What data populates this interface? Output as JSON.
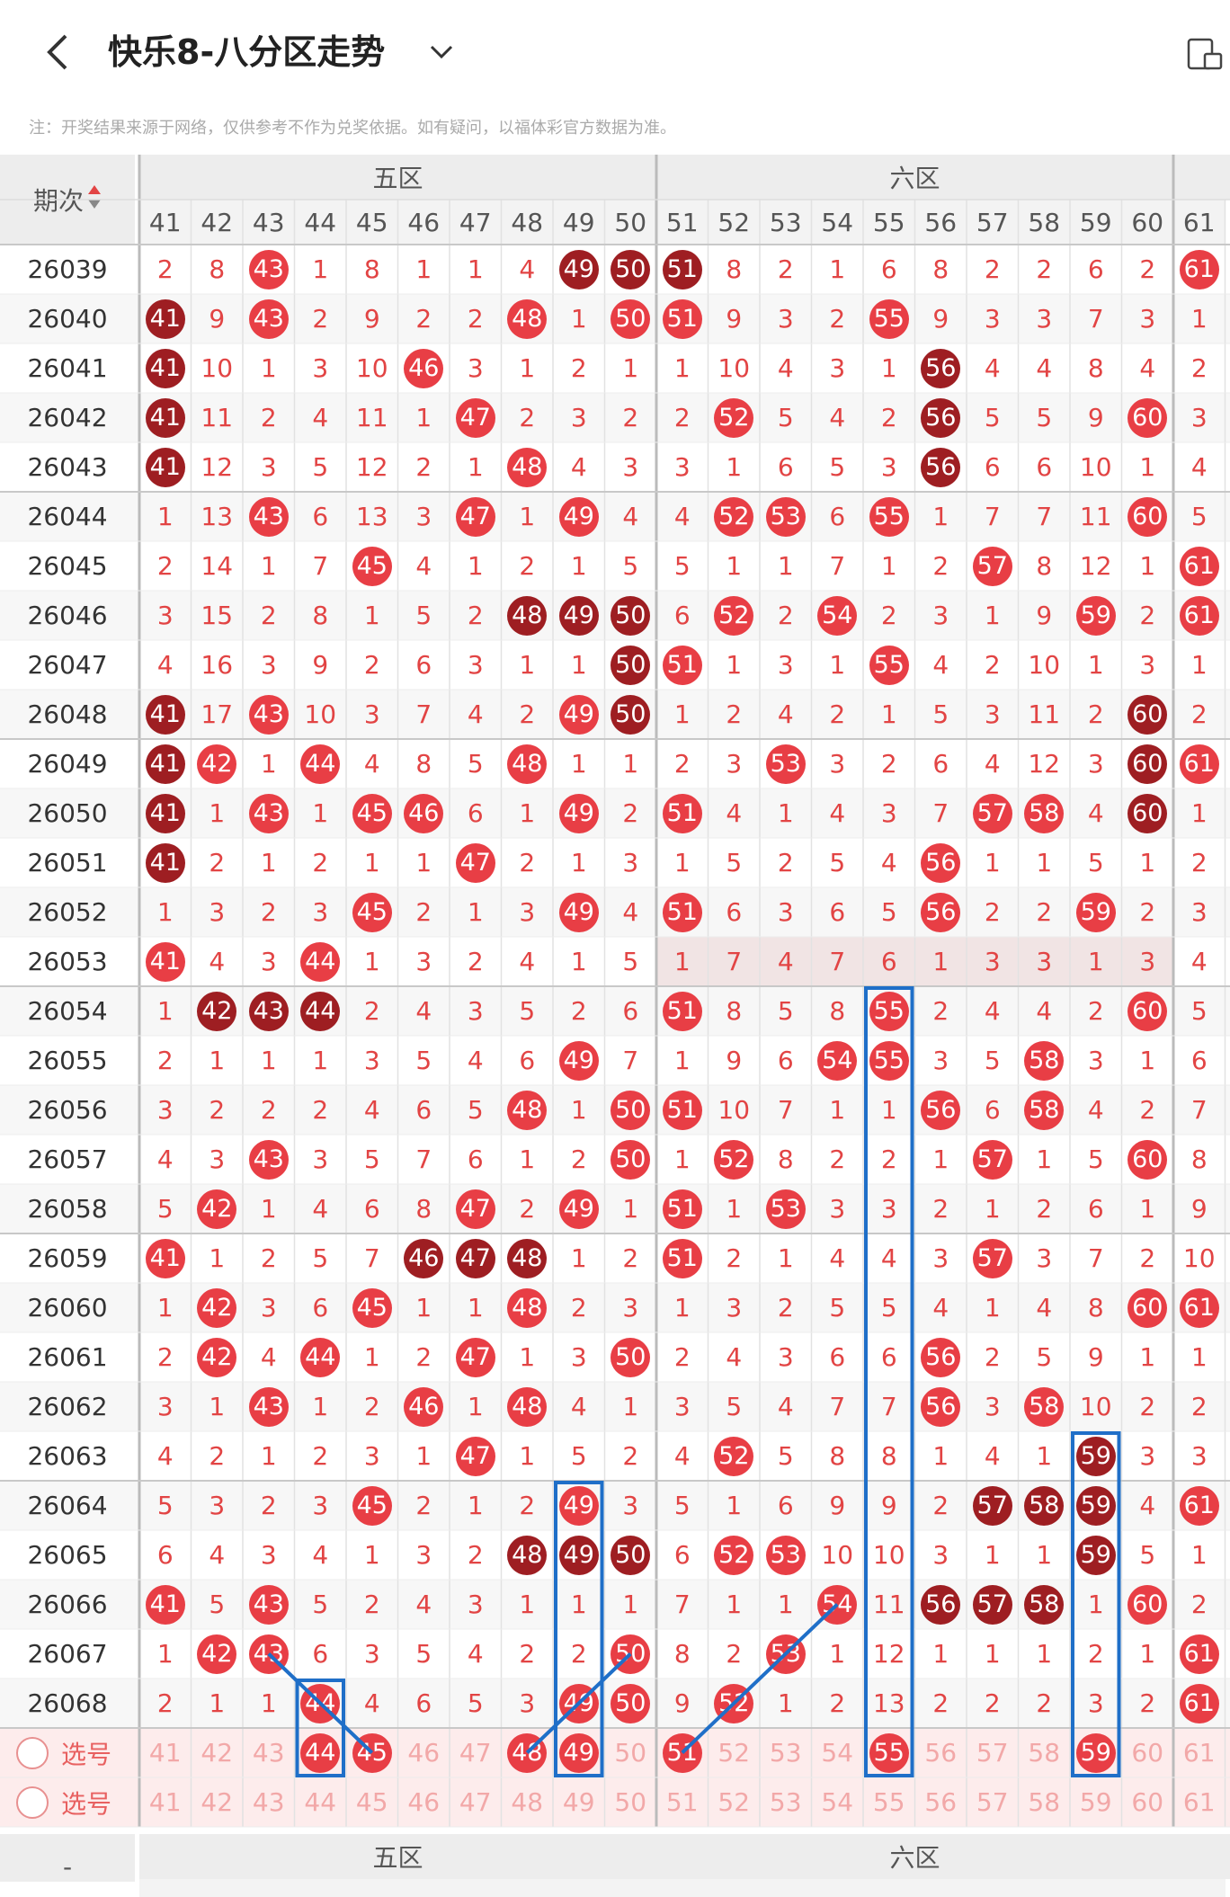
{
  "header": {
    "title": "快乐8-八分区走势",
    "back_icon": "chevron-left-icon",
    "dropdown_icon": "chevron-down-icon",
    "right_icon": "layout-toggle-icon"
  },
  "note": "注：开奖结果来源于网络，仅供参考不作为兑奖依据。如有疑问，以福体彩官方数据为准。",
  "table": {
    "period_header": "期次",
    "zones": [
      {
        "label": "五区",
        "cols": 10
      },
      {
        "label": "六区",
        "cols": 10
      }
    ],
    "bottom_zones": [
      "五区",
      "六区"
    ],
    "columns": [
      41,
      42,
      43,
      44,
      45,
      46,
      47,
      48,
      49,
      50,
      51,
      52,
      53,
      54,
      55,
      56,
      57,
      58,
      59,
      60,
      61
    ],
    "rows": [
      {
        "period": "26039",
        "cells": [
          "2",
          "8",
          "h43",
          "1",
          "8",
          "1",
          "1",
          "4",
          "d49",
          "d50",
          "d51",
          "8",
          "2",
          "1",
          "6",
          "8",
          "2",
          "2",
          "6",
          "2",
          "h61"
        ]
      },
      {
        "period": "26040",
        "cells": [
          "d41",
          "9",
          "h43",
          "2",
          "9",
          "2",
          "2",
          "h48",
          "1",
          "h50",
          "h51",
          "9",
          "3",
          "2",
          "h55",
          "9",
          "3",
          "3",
          "7",
          "3",
          "1"
        ]
      },
      {
        "period": "26041",
        "cells": [
          "d41",
          "10",
          "1",
          "3",
          "10",
          "h46",
          "3",
          "1",
          "2",
          "1",
          "1",
          "10",
          "4",
          "3",
          "1",
          "d56",
          "4",
          "4",
          "8",
          "4",
          "2"
        ]
      },
      {
        "period": "26042",
        "cells": [
          "d41",
          "11",
          "2",
          "4",
          "11",
          "1",
          "h47",
          "2",
          "3",
          "2",
          "2",
          "h52",
          "5",
          "4",
          "2",
          "d56",
          "5",
          "5",
          "9",
          "h60",
          "3"
        ]
      },
      {
        "period": "26043",
        "cells": [
          "d41",
          "12",
          "3",
          "5",
          "12",
          "2",
          "1",
          "h48",
          "4",
          "3",
          "3",
          "1",
          "6",
          "5",
          "3",
          "d56",
          "6",
          "6",
          "10",
          "1",
          "4"
        ]
      },
      {
        "period": "26044",
        "cells": [
          "1",
          "13",
          "h43",
          "6",
          "13",
          "3",
          "h47",
          "1",
          "h49",
          "4",
          "4",
          "h52",
          "h53",
          "6",
          "h55",
          "1",
          "7",
          "7",
          "11",
          "h60",
          "5"
        ]
      },
      {
        "period": "26045",
        "cells": [
          "2",
          "14",
          "1",
          "7",
          "h45",
          "4",
          "1",
          "2",
          "1",
          "5",
          "5",
          "1",
          "1",
          "7",
          "1",
          "2",
          "h57",
          "8",
          "12",
          "1",
          "h61"
        ]
      },
      {
        "period": "26046",
        "cells": [
          "3",
          "15",
          "2",
          "8",
          "1",
          "5",
          "2",
          "d48",
          "d49",
          "d50",
          "6",
          "h52",
          "2",
          "h54",
          "2",
          "3",
          "1",
          "9",
          "h59",
          "2",
          "h61"
        ]
      },
      {
        "period": "26047",
        "cells": [
          "4",
          "16",
          "3",
          "9",
          "2",
          "6",
          "3",
          "1",
          "1",
          "d50",
          "h51",
          "1",
          "3",
          "1",
          "h55",
          "4",
          "2",
          "10",
          "1",
          "3",
          "1"
        ]
      },
      {
        "period": "26048",
        "cells": [
          "d41",
          "17",
          "h43",
          "10",
          "3",
          "7",
          "4",
          "2",
          "h49",
          "d50",
          "1",
          "2",
          "4",
          "2",
          "1",
          "5",
          "3",
          "11",
          "2",
          "d60",
          "2"
        ]
      },
      {
        "period": "26049",
        "cells": [
          "d41",
          "h42",
          "1",
          "h44",
          "4",
          "8",
          "5",
          "h48",
          "1",
          "1",
          "2",
          "3",
          "h53",
          "3",
          "2",
          "6",
          "4",
          "12",
          "3",
          "d60",
          "h61"
        ]
      },
      {
        "period": "26050",
        "cells": [
          "d41",
          "1",
          "h43",
          "1",
          "h45",
          "h46",
          "6",
          "1",
          "h49",
          "2",
          "h51",
          "4",
          "1",
          "4",
          "3",
          "7",
          "h57",
          "h58",
          "4",
          "d60",
          "1"
        ]
      },
      {
        "period": "26051",
        "cells": [
          "d41",
          "2",
          "1",
          "2",
          "1",
          "1",
          "h47",
          "2",
          "1",
          "3",
          "1",
          "5",
          "2",
          "5",
          "4",
          "h56",
          "1",
          "1",
          "5",
          "1",
          "2"
        ]
      },
      {
        "period": "26052",
        "cells": [
          "1",
          "3",
          "2",
          "3",
          "h45",
          "2",
          "1",
          "3",
          "h49",
          "4",
          "h51",
          "6",
          "3",
          "6",
          "5",
          "h56",
          "2",
          "2",
          "h59",
          "2",
          "3"
        ]
      },
      {
        "period": "26053",
        "cells": [
          "h41",
          "4",
          "3",
          "h44",
          "1",
          "3",
          "2",
          "4",
          "1",
          "5",
          "1",
          "7",
          "4",
          "7",
          "6",
          "1",
          "3",
          "3",
          "1",
          "3",
          "4"
        ]
      },
      {
        "period": "26054",
        "cells": [
          "1",
          "d42",
          "d43",
          "d44",
          "2",
          "4",
          "3",
          "5",
          "2",
          "6",
          "h51",
          "8",
          "5",
          "8",
          "h55",
          "2",
          "4",
          "4",
          "2",
          "h60",
          "5"
        ]
      },
      {
        "period": "26055",
        "cells": [
          "2",
          "1",
          "1",
          "1",
          "3",
          "5",
          "4",
          "6",
          "h49",
          "7",
          "1",
          "9",
          "6",
          "h54",
          "h55",
          "3",
          "5",
          "h58",
          "3",
          "1",
          "6"
        ]
      },
      {
        "period": "26056",
        "cells": [
          "3",
          "2",
          "2",
          "2",
          "4",
          "6",
          "5",
          "h48",
          "1",
          "h50",
          "h51",
          "10",
          "7",
          "1",
          "1",
          "h56",
          "6",
          "h58",
          "4",
          "2",
          "7"
        ]
      },
      {
        "period": "26057",
        "cells": [
          "4",
          "3",
          "h43",
          "3",
          "5",
          "7",
          "6",
          "1",
          "2",
          "h50",
          "1",
          "h52",
          "8",
          "2",
          "2",
          "1",
          "h57",
          "1",
          "5",
          "h60",
          "8"
        ]
      },
      {
        "period": "26058",
        "cells": [
          "5",
          "h42",
          "1",
          "4",
          "6",
          "8",
          "h47",
          "2",
          "h49",
          "1",
          "h51",
          "1",
          "h53",
          "3",
          "3",
          "2",
          "1",
          "2",
          "6",
          "1",
          "9"
        ]
      },
      {
        "period": "26059",
        "cells": [
          "h41",
          "1",
          "2",
          "5",
          "7",
          "d46",
          "d47",
          "d48",
          "1",
          "2",
          "h51",
          "2",
          "1",
          "4",
          "4",
          "3",
          "h57",
          "3",
          "7",
          "2",
          "10"
        ]
      },
      {
        "period": "26060",
        "cells": [
          "1",
          "h42",
          "3",
          "6",
          "h45",
          "1",
          "1",
          "h48",
          "2",
          "3",
          "1",
          "3",
          "2",
          "5",
          "5",
          "4",
          "1",
          "4",
          "8",
          "h60",
          "h61"
        ]
      },
      {
        "period": "26061",
        "cells": [
          "2",
          "h42",
          "4",
          "h44",
          "1",
          "2",
          "h47",
          "1",
          "3",
          "h50",
          "2",
          "4",
          "3",
          "6",
          "6",
          "h56",
          "2",
          "5",
          "9",
          "1",
          "1"
        ]
      },
      {
        "period": "26062",
        "cells": [
          "3",
          "1",
          "h43",
          "1",
          "2",
          "h46",
          "1",
          "h48",
          "4",
          "1",
          "3",
          "5",
          "4",
          "7",
          "7",
          "h56",
          "3",
          "h58",
          "10",
          "2",
          "2"
        ]
      },
      {
        "period": "26063",
        "cells": [
          "4",
          "2",
          "1",
          "2",
          "3",
          "1",
          "h47",
          "1",
          "5",
          "2",
          "4",
          "h52",
          "5",
          "8",
          "8",
          "1",
          "4",
          "1",
          "d59",
          "3",
          "3"
        ]
      },
      {
        "period": "26064",
        "cells": [
          "5",
          "3",
          "2",
          "3",
          "h45",
          "2",
          "1",
          "2",
          "h49",
          "3",
          "5",
          "1",
          "6",
          "9",
          "9",
          "2",
          "d57",
          "d58",
          "d59",
          "4",
          "h61"
        ]
      },
      {
        "period": "26065",
        "cells": [
          "6",
          "4",
          "3",
          "4",
          "1",
          "3",
          "2",
          "d48",
          "d49",
          "d50",
          "6",
          "h52",
          "h53",
          "10",
          "10",
          "3",
          "1",
          "1",
          "d59",
          "5",
          "1"
        ]
      },
      {
        "period": "26066",
        "cells": [
          "h41",
          "5",
          "h43",
          "5",
          "2",
          "4",
          "3",
          "1",
          "1",
          "1",
          "7",
          "1",
          "1",
          "h54",
          "11",
          "d56",
          "d57",
          "d58",
          "1",
          "h60",
          "2"
        ]
      },
      {
        "period": "26067",
        "cells": [
          "1",
          "h42",
          "h43",
          "6",
          "3",
          "5",
          "4",
          "2",
          "2",
          "h50",
          "8",
          "2",
          "h53",
          "1",
          "12",
          "1",
          "1",
          "1",
          "2",
          "1",
          "h61"
        ]
      },
      {
        "period": "26068",
        "cells": [
          "2",
          "1",
          "1",
          "h44",
          "4",
          "6",
          "5",
          "3",
          "h49",
          "h50",
          "9",
          "h52",
          "1",
          "2",
          "13",
          "2",
          "2",
          "2",
          "3",
          "2",
          "h61"
        ]
      }
    ],
    "select_rows": [
      {
        "label": "选号",
        "selected": [
          44,
          45,
          48,
          49,
          51,
          55,
          59
        ]
      },
      {
        "label": "选号",
        "selected": []
      }
    ],
    "bottom_period_stub": "-"
  },
  "colors": {
    "ball_light": "#e83e45",
    "ball_dark": "#9e1e22",
    "number_text": "#e24444",
    "annotation_blue": "#1f6fc8",
    "select_row_bg": "#fdecec"
  }
}
